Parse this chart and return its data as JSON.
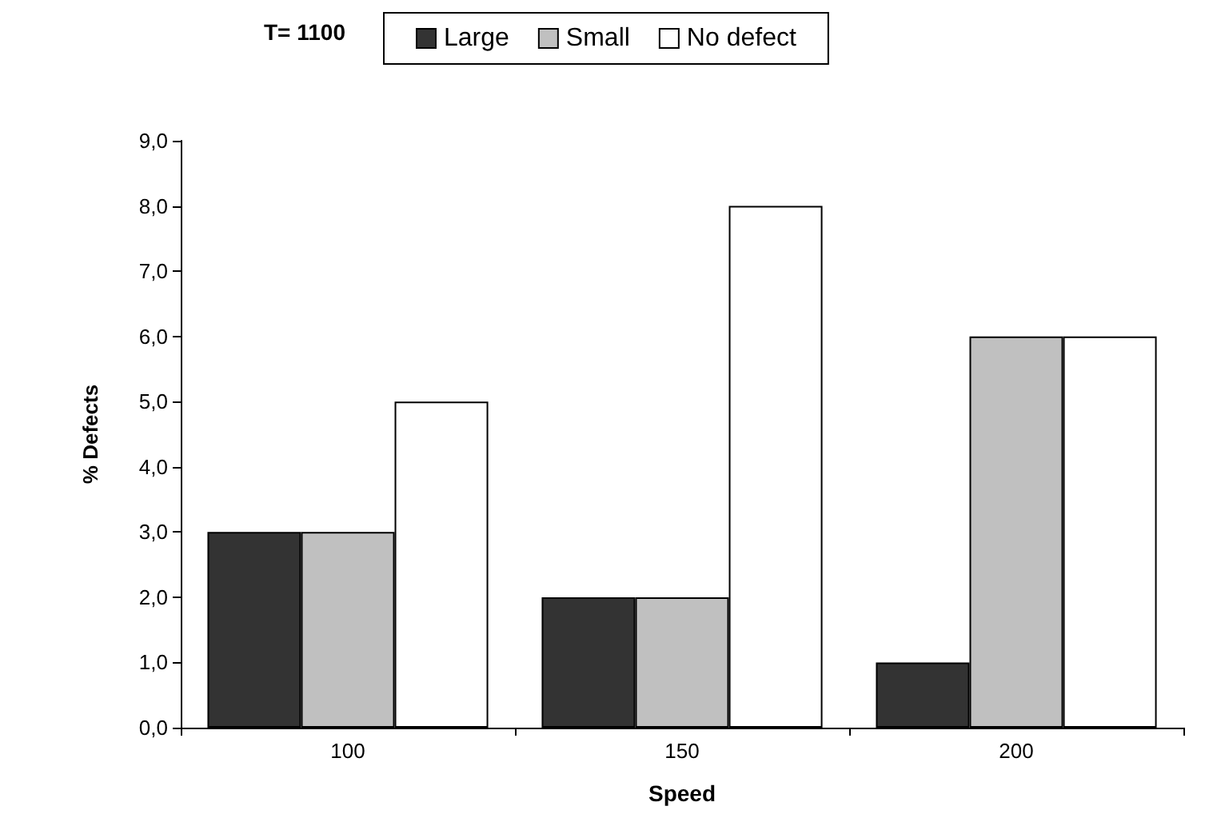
{
  "chart_data": {
    "type": "bar",
    "title": "T= 1100",
    "xlabel": "Speed",
    "ylabel": "% Defects",
    "categories": [
      "100",
      "150",
      "200"
    ],
    "series": [
      {
        "name": "Large",
        "color": "#333333",
        "values": [
          3,
          2,
          1
        ]
      },
      {
        "name": "Small",
        "color": "#c0c0c0",
        "values": [
          3,
          2,
          6
        ]
      },
      {
        "name": "No defect",
        "color": "#ffffff",
        "values": [
          5,
          8,
          6
        ]
      }
    ],
    "ylim": [
      0,
      9
    ],
    "yticks": [
      {
        "value": 0,
        "label": "0,0"
      },
      {
        "value": 1,
        "label": "1,0"
      },
      {
        "value": 2,
        "label": "2,0"
      },
      {
        "value": 3,
        "label": "3,0"
      },
      {
        "value": 4,
        "label": "4,0"
      },
      {
        "value": 5,
        "label": "5,0"
      },
      {
        "value": 6,
        "label": "6,0"
      },
      {
        "value": 7,
        "label": "7,0"
      },
      {
        "value": 8,
        "label": "8,0"
      },
      {
        "value": 9,
        "label": "9,0"
      }
    ],
    "grid": false,
    "legend": "top"
  }
}
